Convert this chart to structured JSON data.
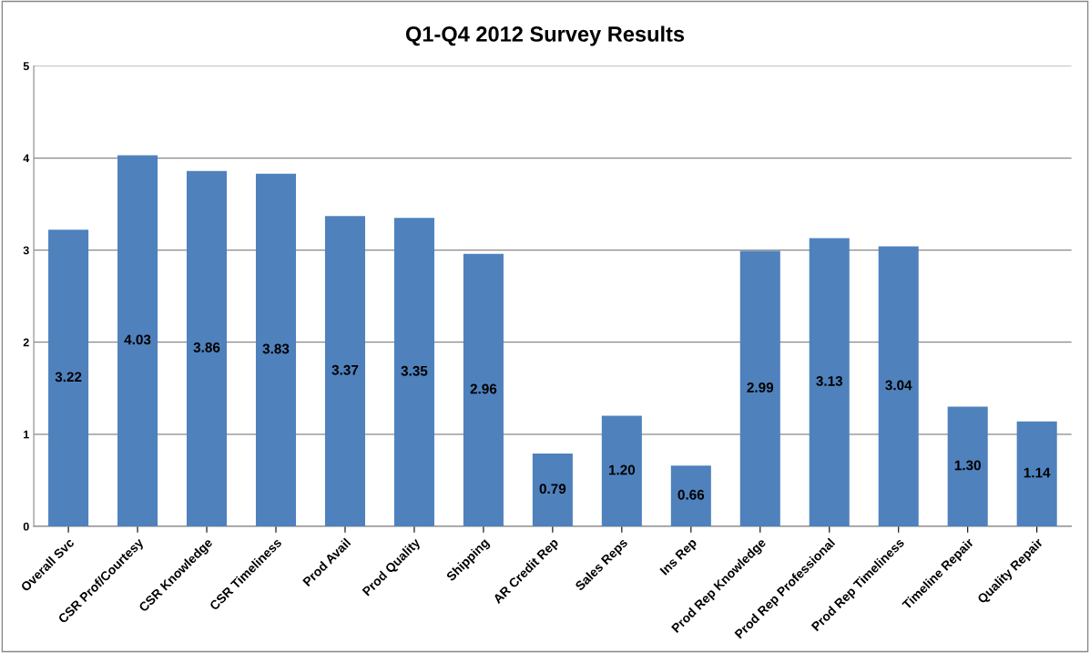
{
  "chart_data": {
    "type": "bar",
    "title": "Q1-Q4 2012 Survey Results",
    "categories": [
      "Overall Svc",
      "CSR Prof/Courtesy",
      "CSR Knowledge",
      "CSR Timeliness",
      "Prod Avail",
      "Prod Quality",
      "Shipping",
      "AR Credit Rep",
      "Sales Reps",
      "Ins Rep",
      "Prod Rep Knowledge",
      "Prod Rep Professional",
      "Prod Rep Timeliness",
      "Timeline Repair",
      "Quality Repair"
    ],
    "values": [
      3.22,
      4.03,
      3.86,
      3.83,
      3.37,
      3.35,
      2.96,
      0.79,
      1.2,
      0.66,
      2.99,
      3.13,
      3.04,
      1.3,
      1.14
    ],
    "value_labels": [
      "3.22",
      "4.03",
      "3.86",
      "3.83",
      "3.37",
      "3.35",
      "2.96",
      "0.79",
      "1.20",
      "0.66",
      "2.99",
      "3.13",
      "3.04",
      "1.30",
      "1.14"
    ],
    "color": "#4f81bd",
    "ylim": [
      0,
      5
    ],
    "yticks": [
      0,
      1,
      2,
      3,
      4,
      5
    ],
    "grid": "y",
    "legend": false
  }
}
